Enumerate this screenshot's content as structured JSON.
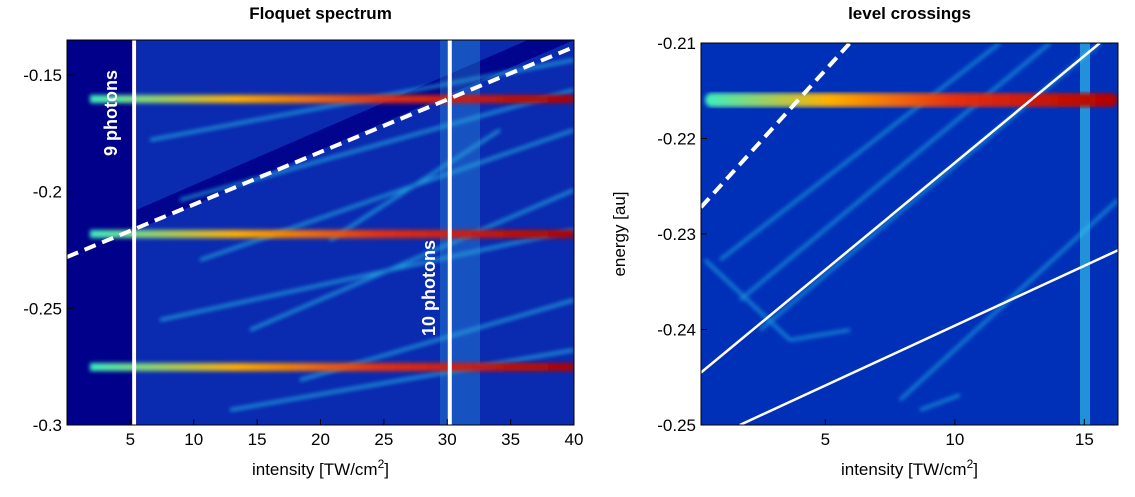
{
  "chart_data": [
    {
      "type": "heatmap",
      "title": "Floquet spectrum",
      "xlabel": [
        "intensity [TW/cm",
        "2",
        "]"
      ],
      "xlim": [
        0,
        40
      ],
      "xticks": [
        5,
        10,
        15,
        20,
        25,
        30,
        35,
        40
      ],
      "ylim": [
        -0.3,
        -0.135
      ],
      "yticks": [
        -0.15,
        -0.2,
        -0.25,
        -0.3
      ],
      "annotations": [
        "9 photons",
        "10 photons"
      ],
      "lines": [
        {
          "x": [
            5.3,
            5.3
          ],
          "y": [
            -0.3,
            -0.135
          ],
          "style": "solid"
        },
        {
          "x": [
            30.2,
            30.2
          ],
          "y": [
            -0.3,
            -0.135
          ],
          "style": "solid"
        },
        {
          "x": [
            0,
            40
          ],
          "y": [
            -0.228,
            -0.138
          ],
          "style": "dashed"
        }
      ]
    },
    {
      "type": "heatmap",
      "title": "level crossings",
      "xlabel": [
        "intensity [TW/cm",
        "2",
        "]"
      ],
      "ylabel": "energy [au]",
      "xlim": [
        0.2,
        16.3
      ],
      "xticks": [
        5,
        10,
        15
      ],
      "ylim": [
        -0.25,
        -0.21
      ],
      "yticks": [
        -0.21,
        -0.22,
        -0.23,
        -0.24,
        -0.25
      ],
      "lines": [
        {
          "x": [
            0.2,
            5.95
          ],
          "y": [
            -0.2272,
            -0.21
          ],
          "style": "dashed"
        },
        {
          "x": [
            0.2,
            15.6
          ],
          "y": [
            -0.2445,
            -0.21
          ],
          "style": "solid"
        },
        {
          "x": [
            1.7,
            16.3
          ],
          "y": [
            -0.25,
            -0.2317
          ],
          "style": "solid"
        }
      ]
    }
  ]
}
